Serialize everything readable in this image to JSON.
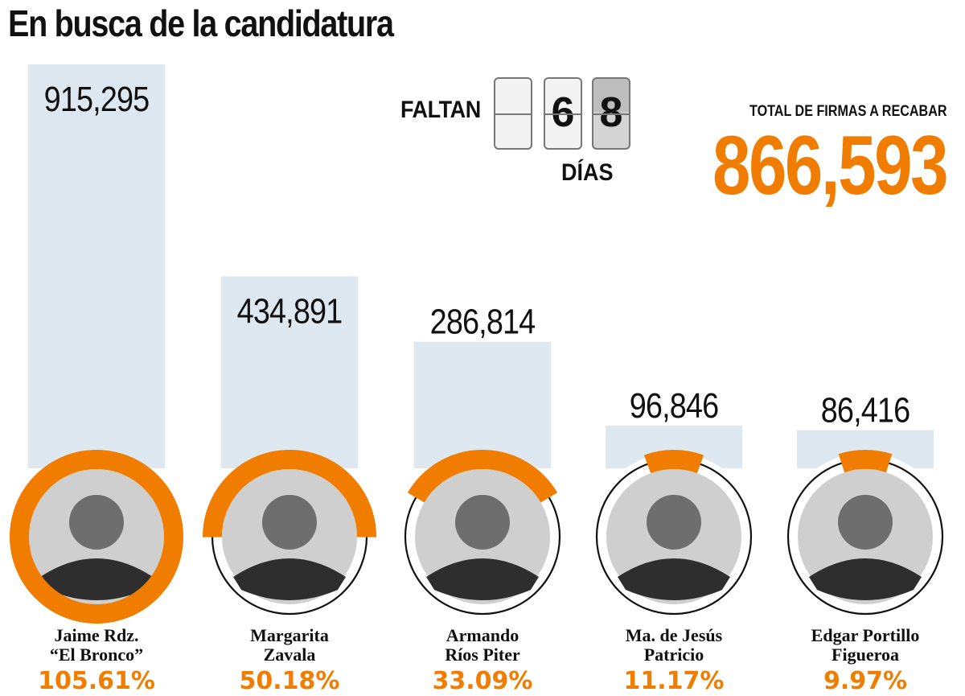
{
  "title": "En busca de la candidatura",
  "countdown": {
    "prefix": "FALTAN",
    "digits": [
      "",
      "6",
      "8"
    ],
    "suffix": "DÍAS"
  },
  "total": {
    "label": "TOTAL DE FIRMAS A RECABAR",
    "value": "866,593"
  },
  "colors": {
    "bar": "#dde8f0",
    "accent": "#f07d00",
    "ring": "#111111",
    "text": "#111111"
  },
  "chart_data": {
    "type": "bar",
    "title": "En busca de la candidatura",
    "categories": [
      "Jaime Rdz. “El Bronco”",
      "Margarita Zavala",
      "Armando Ríos Piter",
      "Ma. de Jesús Patricio",
      "Edgar Portillo Figueroa"
    ],
    "name_lines": [
      [
        "Jaime Rdz.",
        "“El Bronco”"
      ],
      [
        "Margarita",
        "Zavala"
      ],
      [
        "Armando",
        "Ríos Piter"
      ],
      [
        "Ma. de Jesús",
        "Patricio"
      ],
      [
        "Edgar Portillo",
        "Figueroa"
      ]
    ],
    "values": [
      915295,
      434891,
      286814,
      96846,
      86416
    ],
    "value_labels": [
      "915,295",
      "434,891",
      "286,814",
      "96,846",
      "86,416"
    ],
    "percent": [
      105.61,
      50.18,
      33.09,
      11.17,
      9.97
    ],
    "percent_labels": [
      "105.61%",
      "50.18%",
      "33.09%",
      "11.17%",
      "9.97%"
    ],
    "target": 866593,
    "ylim": [
      0,
      915295
    ]
  }
}
